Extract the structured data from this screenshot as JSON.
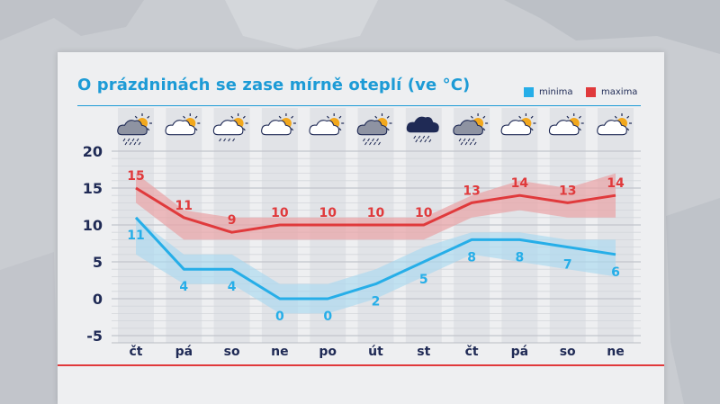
{
  "title": "O prázdninách se zase mírně oteplí (ve °C)",
  "legend": {
    "min_label": "minima",
    "max_label": "maxima"
  },
  "colors": {
    "title": "#1d9bd6",
    "min": "#26aee8",
    "min_band": "#a9d8ef",
    "max": "#e03a3c",
    "max_band": "#e9a3a5",
    "axis_text": "#1f2a55",
    "bottom_rule": "#e0393b"
  },
  "days": [
    {
      "label": "čt",
      "icon": "partly-cloudy-rain-icon"
    },
    {
      "label": "pá",
      "icon": "partly-cloudy-icon"
    },
    {
      "label": "so",
      "icon": "partly-cloudy-light-rain-icon"
    },
    {
      "label": "ne",
      "icon": "partly-cloudy-icon"
    },
    {
      "label": "po",
      "icon": "partly-cloudy-icon"
    },
    {
      "label": "út",
      "icon": "partly-cloudy-rain-icon"
    },
    {
      "label": "st",
      "icon": "storm-cloud-icon"
    },
    {
      "label": "čt",
      "icon": "partly-cloudy-rain-icon"
    },
    {
      "label": "pá",
      "icon": "partly-cloudy-icon"
    },
    {
      "label": "so",
      "icon": "partly-cloudy-icon"
    },
    {
      "label": "ne",
      "icon": "partly-cloudy-icon"
    }
  ],
  "chart_data": {
    "type": "line",
    "title": "O prázdninách se zase mírně oteplí (ve °C)",
    "categories": [
      "čt",
      "pá",
      "so",
      "ne",
      "po",
      "út",
      "st",
      "čt",
      "pá",
      "so",
      "ne"
    ],
    "series": [
      {
        "name": "minima",
        "values": [
          11,
          4,
          4,
          0,
          0,
          2,
          5,
          8,
          8,
          7,
          6
        ],
        "band_low": [
          6,
          2,
          2,
          -2,
          -2,
          0,
          3,
          6,
          5,
          4,
          3
        ],
        "band_high": [
          11,
          6,
          6,
          2,
          2,
          4,
          7,
          9,
          9,
          8,
          8
        ]
      },
      {
        "name": "maxima",
        "values": [
          15,
          11,
          9,
          10,
          10,
          10,
          10,
          13,
          14,
          13,
          14
        ],
        "band_low": [
          13,
          8,
          8,
          8,
          8,
          8,
          8,
          11,
          12,
          11,
          11
        ],
        "band_high": [
          17,
          12,
          11,
          11,
          11,
          11,
          11,
          14,
          16,
          15,
          17
        ]
      }
    ],
    "yticks": [
      20,
      15,
      10,
      5,
      0,
      -5
    ],
    "ylim": [
      -5,
      20
    ],
    "grid": true,
    "legend_position": "top-right"
  }
}
